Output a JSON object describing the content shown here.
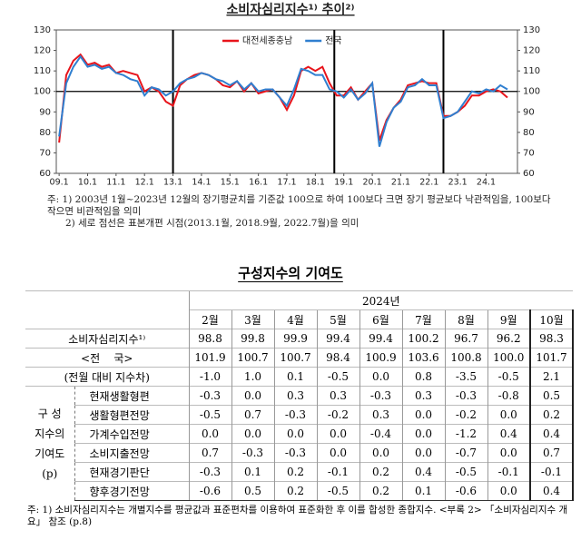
{
  "chart_data": {
    "type": "line",
    "title": "소비자심리지수¹⁾ 추이²⁾",
    "x": [
      2009,
      2009.25,
      2009.5,
      2009.75,
      2010,
      2010.25,
      2010.5,
      2010.75,
      2011,
      2011.25,
      2011.5,
      2011.75,
      2012,
      2012.25,
      2012.5,
      2012.75,
      2013,
      2013.25,
      2013.5,
      2013.75,
      2014,
      2014.25,
      2014.5,
      2014.75,
      2015,
      2015.25,
      2015.5,
      2015.75,
      2016,
      2016.25,
      2016.5,
      2016.75,
      2017,
      2017.25,
      2017.5,
      2017.75,
      2018,
      2018.25,
      2018.5,
      2018.75,
      2019,
      2019.25,
      2019.5,
      2019.75,
      2020,
      2020.25,
      2020.5,
      2020.75,
      2021,
      2021.25,
      2021.5,
      2021.75,
      2022,
      2022.25,
      2022.5,
      2022.75,
      2023,
      2023.25,
      2023.5,
      2023.75,
      2024,
      2024.25,
      2024.5,
      2024.75
    ],
    "series": [
      {
        "name": "대전세종충남",
        "color": "#e8141b",
        "values": [
          75,
          108,
          115,
          118,
          113,
          114,
          112,
          113,
          109,
          110,
          109,
          108,
          100,
          102,
          100,
          95,
          93,
          103,
          106,
          108,
          109,
          108,
          106,
          103,
          102,
          105,
          100,
          104,
          99,
          100,
          101,
          97,
          91,
          98,
          110,
          112,
          110,
          112,
          104,
          98,
          98,
          102,
          96,
          100,
          104,
          76,
          86,
          92,
          96,
          103,
          104,
          105,
          104,
          104,
          88,
          88,
          90,
          93,
          98,
          98,
          100,
          101,
          100,
          97
        ]
      },
      {
        "name": "전국",
        "color": "#2f7fd0",
        "values": [
          78,
          104,
          112,
          117,
          112,
          113,
          111,
          112,
          109,
          108,
          106,
          105,
          98,
          102,
          101,
          98,
          100,
          104,
          106,
          107,
          109,
          108,
          106,
          105,
          103,
          105,
          101,
          104,
          100,
          101,
          101,
          97,
          93,
          101,
          111,
          110,
          108,
          108,
          101,
          100,
          97,
          101,
          96,
          99,
          104,
          73,
          85,
          92,
          95,
          102,
          103,
          106,
          103,
          103,
          87,
          88,
          90,
          95,
          100,
          99,
          101,
          100,
          103,
          101
        ]
      }
    ],
    "xlim": [
      2008.9,
      2025.1
    ],
    "xticks": [
      {
        "value": 2009,
        "label": "09.1"
      },
      {
        "value": 2010,
        "label": "10.1"
      },
      {
        "value": 2011,
        "label": "11.1"
      },
      {
        "value": 2012,
        "label": "12.1"
      },
      {
        "value": 2013,
        "label": "13.1"
      },
      {
        "value": 2014,
        "label": "14.1"
      },
      {
        "value": 2015,
        "label": "15.1"
      },
      {
        "value": 2016,
        "label": "16.1"
      },
      {
        "value": 2017,
        "label": "17.1"
      },
      {
        "value": 2018,
        "label": "18.1"
      },
      {
        "value": 2019,
        "label": "19.1"
      },
      {
        "value": 2020,
        "label": "20.1"
      },
      {
        "value": 2021,
        "label": "21.1"
      },
      {
        "value": 2022,
        "label": "22.1"
      },
      {
        "value": 2023,
        "label": "23.1"
      },
      {
        "value": 2024,
        "label": "24.1"
      }
    ],
    "ylim": [
      60,
      130
    ],
    "yticks": [
      60,
      70,
      80,
      90,
      100,
      110,
      120,
      130
    ],
    "y2lim": [
      60,
      130
    ],
    "y2ticks": [
      60,
      70,
      80,
      90,
      100,
      110,
      120,
      130
    ],
    "hline": 100,
    "vlines": [
      2013,
      2018.667,
      2022.5
    ],
    "legend": "top"
  },
  "chart_notes": [
    "주: 1) 2003년 1월~2023년 12월의 장기평균치를 기준값 100으로 하여 100보다 크면 장기 평균보다 낙관적임을, 100보다 작으면 비관적임을 의미",
    "2) 세로 점선은 표본개편 시점(2013.1월, 2018.9월, 2022.7월)을 의미"
  ],
  "table": {
    "title": "구성지수의 기여도",
    "year": "2024년",
    "months": [
      "2월",
      "3월",
      "4월",
      "5월",
      "6월",
      "7월",
      "8월",
      "9월",
      "10월"
    ],
    "rows": [
      {
        "label": "소비자심리지수¹⁾",
        "values": [
          "98.8",
          "99.8",
          "99.9",
          "99.4",
          "99.4",
          "100.2",
          "96.7",
          "96.2",
          "98.3"
        ]
      },
      {
        "label": "<전    국>",
        "values": [
          "101.9",
          "100.7",
          "100.7",
          "98.4",
          "100.9",
          "103.6",
          "100.8",
          "100.0",
          "101.7"
        ]
      },
      {
        "label": "(전월 대비 지수차)",
        "values": [
          "-1.0",
          "1.0",
          "0.1",
          "-0.5",
          "0.0",
          "0.8",
          "-3.5",
          "-0.5",
          "2.1"
        ]
      }
    ],
    "group_label": [
      "구  성",
      "지수의",
      "기여도",
      "(p)"
    ],
    "group_rows": [
      {
        "label": "현재생활형편",
        "values": [
          "-0.3",
          "0.0",
          "0.3",
          "0.3",
          "-0.3",
          "0.3",
          "-0.3",
          "-0.8",
          "0.5"
        ]
      },
      {
        "label": "생활형편전망",
        "values": [
          "-0.5",
          "0.7",
          "-0.3",
          "-0.2",
          "0.3",
          "0.0",
          "-0.2",
          "0.0",
          "0.2"
        ]
      },
      {
        "label": "가계수입전망",
        "values": [
          "0.0",
          "0.0",
          "0.0",
          "0.0",
          "-0.4",
          "0.0",
          "-1.2",
          "0.4",
          "0.4"
        ]
      },
      {
        "label": "소비지출전망",
        "values": [
          "0.7",
          "-0.3",
          "-0.3",
          "0.0",
          "0.0",
          "0.0",
          "-0.7",
          "0.0",
          "0.7"
        ]
      },
      {
        "label": "현재경기판단",
        "values": [
          "-0.3",
          "0.1",
          "0.2",
          "-0.1",
          "0.2",
          "0.4",
          "-0.5",
          "-0.1",
          "-0.1"
        ]
      },
      {
        "label": "향후경기전망",
        "values": [
          "-0.6",
          "0.5",
          "0.2",
          "-0.5",
          "0.2",
          "0.1",
          "-0.6",
          "0.0",
          "0.4"
        ]
      }
    ],
    "footnote": "주: 1) 소비자심리지수는 개별지수를 평균값과 표준편차를 이용하여 표준화한 후 이를 합성한 종합지수. <부록 2> 「소비자심리지수 개요」 참조 (p.8)"
  }
}
